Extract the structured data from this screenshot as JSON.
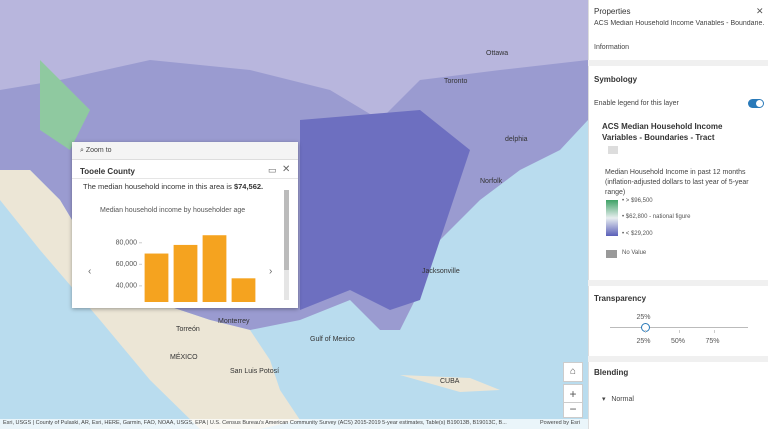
{
  "map": {
    "labels": [
      "Ottawa",
      "Toronto",
      "delphia",
      "Norfolk",
      "Jacksonville",
      "Gulf of Mexico",
      "MÉXICO",
      "Torreón",
      "Monterrey",
      "San Luis Potosí",
      "CUBA"
    ],
    "attribution": "Esri, USGS | County of Pulaski, AR, Esri, HERE, Garmin, FAO, NOAA, USGS, EPA | U.S. Census Bureau's American Community Survey (ACS) 2015-2019 5-year estimates, Table(s) B19013B, B19013C, B...",
    "powered_by": "Powered by Esri"
  },
  "popup": {
    "zoom_to": "Zoom to",
    "title": "Tooele County",
    "intro": "The median household income in this area is",
    "amount": "$74,562."
  },
  "panel": {
    "title": "Properties",
    "subtitle": "ACS Median Household Income Variables - Boundarie...",
    "information": "Information",
    "symbology": "Symbology",
    "enable_legend": "Enable legend for this layer",
    "layer_name": "ACS Median Household Income Variables - Boundaries - Tract",
    "field": "Median Household Income in past 12 months (inflation-adjusted dollars to last year of 5-year range)",
    "legend": [
      "> $96,500",
      "$62,800 - national figure",
      "< $29,200"
    ],
    "no_value": "No Value",
    "transparency": {
      "label": "Transparency",
      "value": 25,
      "value_label": "25%",
      "range": [
        0,
        100
      ],
      "ticks": [
        {
          "value": 25,
          "label": "25%"
        },
        {
          "value": 50,
          "label": "50%"
        },
        {
          "value": 75,
          "label": "75%"
        }
      ]
    },
    "blending": "Blending",
    "blend_mode": "Normal"
  },
  "chart_data": {
    "type": "bar",
    "title": "Median household income by householder age",
    "categories": [
      null,
      null,
      null,
      null
    ],
    "values": [
      70000,
      78000,
      87000,
      47000
    ],
    "color": "#f5a31f",
    "ylim": [
      25000,
      90000
    ],
    "yticks": [
      {
        "value": 40000,
        "label": "40,000"
      },
      {
        "value": 60000,
        "label": "60,000"
      },
      {
        "value": 80000,
        "label": "80,000"
      }
    ]
  }
}
